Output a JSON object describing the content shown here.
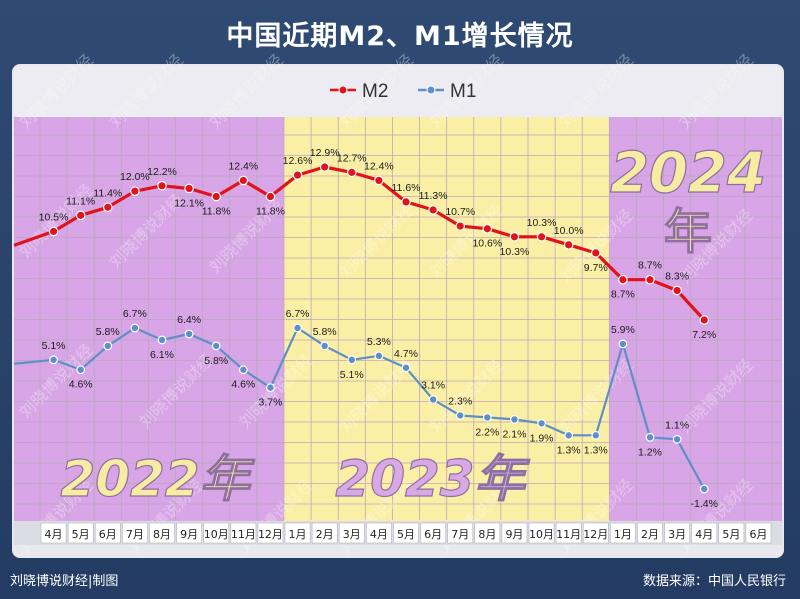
{
  "title": "中国近期M2、M1增长情况",
  "footer": {
    "author": "刘晓博说财经|制图",
    "source": "数据来源：中国人民银行"
  },
  "watermark": "刘晓博说财经",
  "colors": {
    "m2": "#e0131b",
    "m1": "#5e8fc6",
    "band_2022": "#d8a5e6",
    "band_2023": "#fbefa6",
    "band_2024": "#d8a5e6",
    "year_2022_text": "#f7eda2",
    "year_2023_text": "#d9a8e6",
    "year_2024_text": "#f7eda2"
  },
  "chart_data": {
    "type": "line",
    "title": "中国近期M2、M1增长情况",
    "categories": [
      "4月",
      "5月",
      "6月",
      "7月",
      "8月",
      "9月",
      "10月",
      "11月",
      "12月",
      "1月",
      "2月",
      "3月",
      "4月",
      "5月",
      "6月",
      "7月",
      "8月",
      "9月",
      "10月",
      "11月",
      "12月",
      "1月",
      "2月",
      "3月",
      "4月",
      "5月",
      "6月"
    ],
    "series": [
      {
        "name": "M2",
        "values": [
          10.5,
          11.1,
          11.4,
          12.0,
          12.2,
          12.1,
          11.8,
          12.4,
          11.8,
          12.6,
          12.9,
          12.7,
          12.4,
          11.6,
          11.3,
          10.7,
          10.6,
          10.3,
          10.3,
          10.0,
          9.7,
          8.7,
          8.7,
          8.3,
          7.2,
          null,
          null
        ]
      },
      {
        "name": "M1",
        "values": [
          5.1,
          4.6,
          5.8,
          6.7,
          6.1,
          6.4,
          5.8,
          4.6,
          3.7,
          6.7,
          5.8,
          5.1,
          5.3,
          4.7,
          3.1,
          2.3,
          2.2,
          2.1,
          1.9,
          1.3,
          1.3,
          5.9,
          1.2,
          1.1,
          -1.4,
          null,
          null
        ]
      }
    ],
    "year_labels": [
      {
        "text": "2022年",
        "start": 0,
        "end": 8
      },
      {
        "text": "2023年",
        "start": 9,
        "end": 20
      },
      {
        "text": "2024年",
        "start": 21,
        "end": 26
      }
    ],
    "legend": "top-center",
    "grid": true
  }
}
